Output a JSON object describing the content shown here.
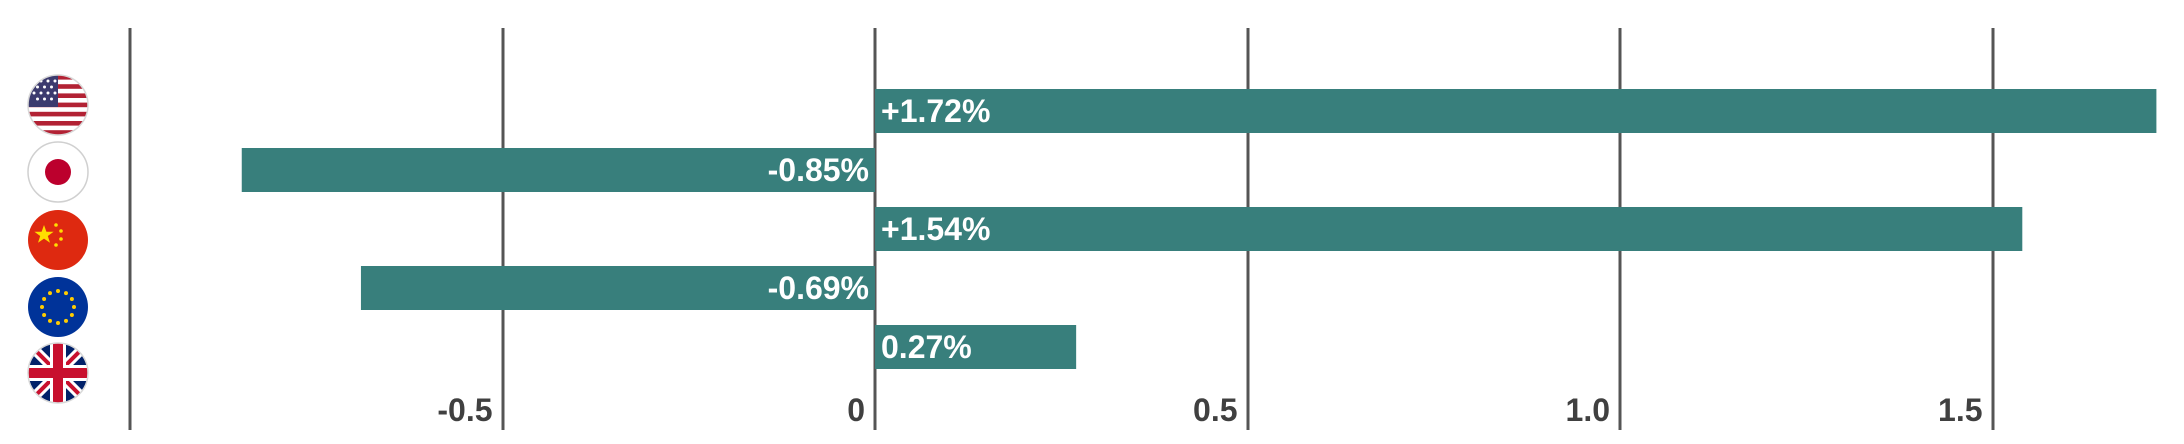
{
  "chart_data": {
    "type": "bar",
    "orientation": "horizontal",
    "categories": [
      "United States",
      "Japan",
      "China",
      "Euro Area",
      "United Kingdom"
    ],
    "values": [
      1.72,
      -0.85,
      1.54,
      -0.69,
      0.27
    ],
    "data_labels": [
      "+1.72%",
      "-0.85%",
      "+1.54%",
      "-0.69%",
      "0.27%"
    ],
    "category_icons": [
      "us-flag-icon",
      "japan-flag-icon",
      "china-flag-icon",
      "eu-flag-icon",
      "uk-flag-icon"
    ],
    "xlim": [
      -1.0,
      1.75
    ],
    "x_ticks": [
      -0.5,
      0,
      0.5,
      1.0,
      1.5
    ],
    "x_tick_labels": [
      "-0.5",
      "0",
      "0.5",
      "1.0",
      "1.5"
    ],
    "gridlines_at": [
      -1.0,
      -0.5,
      0,
      0.5,
      1.0,
      1.5
    ],
    "grid": true,
    "legend": "none",
    "title": "",
    "xlabel": "",
    "ylabel": ""
  },
  "colors": {
    "bar": "#387f7c",
    "gridline": "#555555",
    "tick_text": "#404040",
    "label_text": "#ffffff"
  }
}
